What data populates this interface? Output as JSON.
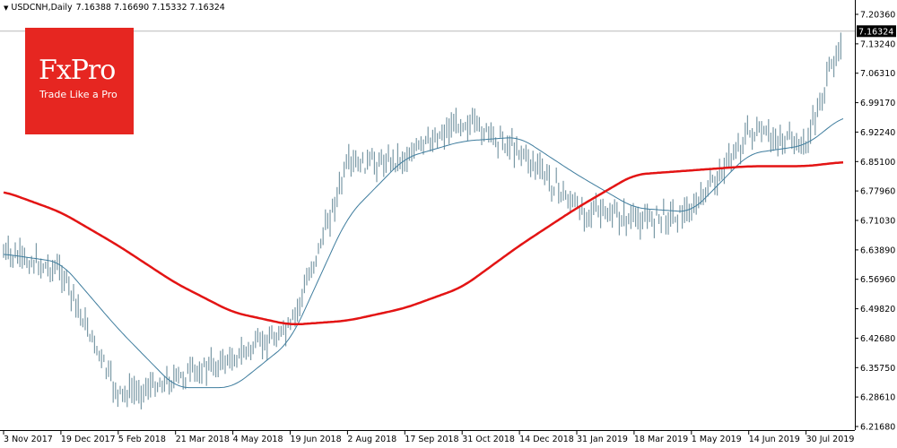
{
  "header": {
    "symbol": "USDCNH,Daily",
    "ohlc": "7.16388 7.16690 7.15332 7.16324"
  },
  "logo": {
    "name": "FxPro",
    "tagline": "Trade Like a Pro"
  },
  "chart_data": {
    "type": "candlestick",
    "symbol": "USDCNH",
    "timeframe": "Daily",
    "current_price": "7.16324",
    "ylim": [
      6.2168,
      7.2036
    ],
    "y_ticks": [
      "7.20360",
      "7.13240",
      "7.06310",
      "6.99170",
      "6.92240",
      "6.85100",
      "6.77960",
      "6.71030",
      "6.63890",
      "6.56960",
      "6.49820",
      "6.42680",
      "6.35750",
      "6.28610",
      "6.21680"
    ],
    "x_ticks": [
      "3 Nov 2017",
      "19 Dec 2017",
      "5 Feb 2018",
      "21 Mar 2018",
      "4 May 2018",
      "19 Jun 2018",
      "2 Aug 2018",
      "17 Sep 2018",
      "31 Oct 2018",
      "14 Dec 2018",
      "31 Jan 2019",
      "18 Mar 2019",
      "1 May 2019",
      "14 Jun 2019",
      "30 Jul 2019"
    ],
    "grid": false,
    "colors": {
      "price": "#7b9aa6",
      "ma_fast": "#3f7d9e",
      "ma_slow": "#e31414",
      "current_price_box": "#000000"
    },
    "price_path": [
      [
        "3 Nov 2017",
        6.63
      ],
      [
        "19 Dec 2017",
        6.59
      ],
      [
        "5 Feb 2018",
        6.29
      ],
      [
        "21 Mar 2018",
        6.33
      ],
      [
        "4 May 2018",
        6.38
      ],
      [
        "19 Jun 2018",
        6.45
      ],
      [
        "2 Aug 2018",
        6.84
      ],
      [
        "17 Sep 2018",
        6.86
      ],
      [
        "31 Oct 2018",
        6.95
      ],
      [
        "14 Dec 2018",
        6.88
      ],
      [
        "31 Jan 2019",
        6.74
      ],
      [
        "18 Mar 2019",
        6.71
      ],
      [
        "1 May 2019",
        6.73
      ],
      [
        "14 Jun 2019",
        6.92
      ],
      [
        "30 Jul 2019",
        6.89
      ],
      [
        "",
        7.16324
      ]
    ],
    "ma_fast_path": [
      [
        "3 Nov 2017",
        6.63
      ],
      [
        "19 Dec 2017",
        6.61
      ],
      [
        "5 Feb 2018",
        6.45
      ],
      [
        "21 Mar 2018",
        6.31
      ],
      [
        "4 May 2018",
        6.31
      ],
      [
        "19 Jun 2018",
        6.42
      ],
      [
        "2 Aug 2018",
        6.72
      ],
      [
        "17 Sep 2018",
        6.86
      ],
      [
        "31 Oct 2018",
        6.9
      ],
      [
        "14 Dec 2018",
        6.91
      ],
      [
        "31 Jan 2019",
        6.82
      ],
      [
        "18 Mar 2019",
        6.74
      ],
      [
        "1 May 2019",
        6.73
      ],
      [
        "14 Jun 2019",
        6.87
      ],
      [
        "30 Jul 2019",
        6.89
      ],
      [
        "",
        6.96
      ]
    ],
    "ma_slow_path": [
      [
        "3 Nov 2017",
        6.78
      ],
      [
        "19 Dec 2017",
        6.73
      ],
      [
        "5 Feb 2018",
        6.65
      ],
      [
        "21 Mar 2018",
        6.56
      ],
      [
        "4 May 2018",
        6.49
      ],
      [
        "19 Jun 2018",
        6.46
      ],
      [
        "2 Aug 2018",
        6.47
      ],
      [
        "17 Sep 2018",
        6.5
      ],
      [
        "31 Oct 2018",
        6.55
      ],
      [
        "14 Dec 2018",
        6.65
      ],
      [
        "31 Jan 2019",
        6.74
      ],
      [
        "18 Mar 2019",
        6.82
      ],
      [
        "1 May 2019",
        6.83
      ],
      [
        "14 Jun 2019",
        6.84
      ],
      [
        "30 Jul 2019",
        6.84
      ],
      [
        "",
        6.85
      ]
    ]
  }
}
